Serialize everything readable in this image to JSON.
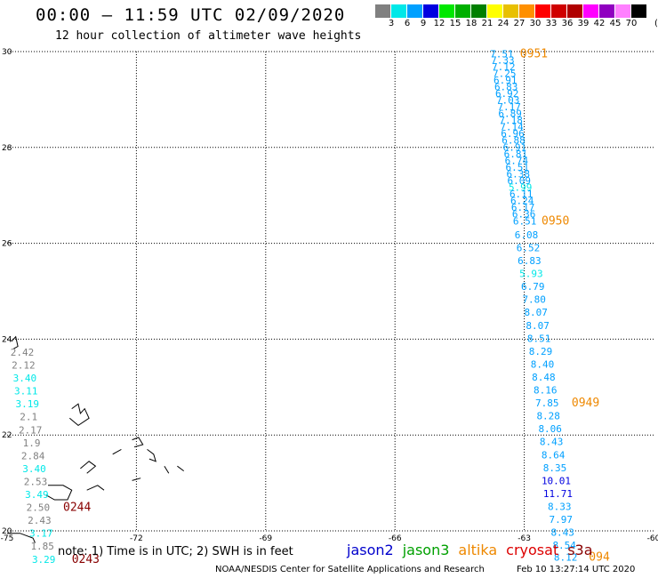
{
  "title": "00:00 – 11:59 UTC 02/09/2020",
  "subtitle": "12 hour collection of altimeter wave heights",
  "scale": {
    "unit": "(ft)",
    "colors": [
      "#808080",
      "#00e8e8",
      "#00a0ff",
      "#0000e0",
      "#00e800",
      "#00b000",
      "#008000",
      "#ffff00",
      "#e8c000",
      "#ff9000",
      "#ff0000",
      "#d00000",
      "#b00000",
      "#ff00ff",
      "#9000c0",
      "#ff80ff",
      "#000000"
    ],
    "ticks": [
      "3",
      "6",
      "9",
      "12",
      "15",
      "18",
      "21",
      "24",
      "27",
      "30",
      "33",
      "36",
      "39",
      "42",
      "45",
      "70"
    ]
  },
  "map": {
    "lon_ticks": [
      "-75",
      "-72",
      "-69",
      "-66",
      "-63",
      "-60"
    ],
    "lat_ticks": [
      "30",
      "28",
      "26",
      "24",
      "22",
      "20"
    ]
  },
  "tracks": [
    {
      "name": "track-east",
      "points": [
        {
          "lat": 29.95,
          "lon": -63.52,
          "v": "7.51"
        },
        {
          "lat": 29.82,
          "lon": -63.5,
          "v": "7.33"
        },
        {
          "lat": 29.68,
          "lon": -63.48,
          "v": "7.12"
        },
        {
          "lat": 29.55,
          "lon": -63.46,
          "v": "7.25"
        },
        {
          "lat": 29.41,
          "lon": -63.44,
          "v": "6.91"
        },
        {
          "lat": 29.27,
          "lon": -63.42,
          "v": "6.83"
        },
        {
          "lat": 29.13,
          "lon": -63.4,
          "v": "6.92"
        },
        {
          "lat": 28.99,
          "lon": -63.38,
          "v": "7.03"
        },
        {
          "lat": 28.85,
          "lon": -63.35,
          "v": "7.17"
        },
        {
          "lat": 28.71,
          "lon": -63.33,
          "v": "6.89"
        },
        {
          "lat": 28.57,
          "lon": -63.31,
          "v": "7.18"
        },
        {
          "lat": 28.43,
          "lon": -63.29,
          "v": "7.14"
        },
        {
          "lat": 28.29,
          "lon": -63.27,
          "v": "6.96"
        },
        {
          "lat": 28.15,
          "lon": -63.25,
          "v": "6.88"
        },
        {
          "lat": 28.01,
          "lon": -63.22,
          "v": "6.91"
        },
        {
          "lat": 27.87,
          "lon": -63.2,
          "v": "6.81"
        },
        {
          "lat": 27.73,
          "lon": -63.18,
          "v": "6.74"
        },
        {
          "lat": 27.59,
          "lon": -63.16,
          "v": "6.51"
        },
        {
          "lat": 27.45,
          "lon": -63.14,
          "v": "6.38"
        },
        {
          "lat": 27.31,
          "lon": -63.12,
          "v": "6.09"
        },
        {
          "lat": 27.17,
          "lon": -63.09,
          "v": "5.99"
        },
        {
          "lat": 27.03,
          "lon": -63.07,
          "v": "6.11"
        },
        {
          "lat": 26.89,
          "lon": -63.05,
          "v": "6.24"
        },
        {
          "lat": 26.75,
          "lon": -63.03,
          "v": "6.17"
        },
        {
          "lat": 26.61,
          "lon": -63.01,
          "v": "6.36"
        },
        {
          "lat": 26.47,
          "lon": -62.99,
          "v": "6.51"
        },
        {
          "lat": 26.18,
          "lon": -62.95,
          "v": "6.08"
        },
        {
          "lat": 25.91,
          "lon": -62.91,
          "v": "6.52"
        },
        {
          "lat": 25.64,
          "lon": -62.88,
          "v": "6.83"
        },
        {
          "lat": 25.37,
          "lon": -62.84,
          "v": "5.93"
        },
        {
          "lat": 25.1,
          "lon": -62.8,
          "v": "6.79"
        },
        {
          "lat": 24.83,
          "lon": -62.77,
          "v": "7.80"
        },
        {
          "lat": 24.56,
          "lon": -62.73,
          "v": "8.07"
        },
        {
          "lat": 24.29,
          "lon": -62.69,
          "v": "8.07"
        },
        {
          "lat": 24.02,
          "lon": -62.66,
          "v": "8.51"
        },
        {
          "lat": 23.75,
          "lon": -62.62,
          "v": "8.29"
        },
        {
          "lat": 23.48,
          "lon": -62.58,
          "v": "8.40"
        },
        {
          "lat": 23.21,
          "lon": -62.55,
          "v": "8.48"
        },
        {
          "lat": 22.94,
          "lon": -62.51,
          "v": "8.16"
        },
        {
          "lat": 22.67,
          "lon": -62.47,
          "v": "7.85"
        },
        {
          "lat": 22.4,
          "lon": -62.44,
          "v": "8.28"
        },
        {
          "lat": 22.13,
          "lon": -62.4,
          "v": "8.06"
        },
        {
          "lat": 21.86,
          "lon": -62.37,
          "v": "8.43"
        },
        {
          "lat": 21.59,
          "lon": -62.33,
          "v": "8.64"
        },
        {
          "lat": 21.32,
          "lon": -62.29,
          "v": "8.35"
        },
        {
          "lat": 21.05,
          "lon": -62.26,
          "v": "10.01"
        },
        {
          "lat": 20.78,
          "lon": -62.22,
          "v": "11.71"
        },
        {
          "lat": 20.51,
          "lon": -62.18,
          "v": "8.33"
        },
        {
          "lat": 20.24,
          "lon": -62.15,
          "v": "7.97"
        },
        {
          "lat": 19.97,
          "lon": -62.11,
          "v": "8.43"
        },
        {
          "lat": 19.7,
          "lon": -62.07,
          "v": "8.54"
        },
        {
          "lat": 19.45,
          "lon": -62.04,
          "v": "8.12"
        }
      ]
    },
    {
      "name": "track-west",
      "points": [
        {
          "lat": 23.73,
          "lon": -74.65,
          "v": "2.42"
        },
        {
          "lat": 23.46,
          "lon": -74.62,
          "v": "2.12"
        },
        {
          "lat": 23.19,
          "lon": -74.59,
          "v": "3.40"
        },
        {
          "lat": 22.92,
          "lon": -74.56,
          "v": "3.11"
        },
        {
          "lat": 22.65,
          "lon": -74.53,
          "v": "3.19"
        },
        {
          "lat": 22.38,
          "lon": -74.5,
          "v": "2.1"
        },
        {
          "lat": 22.11,
          "lon": -74.46,
          "v": "2.17"
        },
        {
          "lat": 21.84,
          "lon": -74.43,
          "v": "1.9"
        },
        {
          "lat": 21.57,
          "lon": -74.4,
          "v": "2.84"
        },
        {
          "lat": 21.3,
          "lon": -74.37,
          "v": "3.40"
        },
        {
          "lat": 21.03,
          "lon": -74.34,
          "v": "2.53"
        },
        {
          "lat": 20.76,
          "lon": -74.31,
          "v": "3.49"
        },
        {
          "lat": 20.49,
          "lon": -74.28,
          "v": "2.50"
        },
        {
          "lat": 20.22,
          "lon": -74.25,
          "v": "2.43"
        },
        {
          "lat": 19.95,
          "lon": -74.21,
          "v": "3.17"
        },
        {
          "lat": 19.68,
          "lon": -74.18,
          "v": "1.85"
        },
        {
          "lat": 19.41,
          "lon": -74.15,
          "v": "3.29"
        }
      ]
    }
  ],
  "time_labels": [
    {
      "text": "0951",
      "lat": 29.95,
      "lon": -63.1,
      "color": "#ee8800"
    },
    {
      "text": "0950",
      "lat": 26.47,
      "lon": -62.6,
      "color": "#ee8800"
    },
    {
      "text": "0949",
      "lat": 22.67,
      "lon": -61.9,
      "color": "#ee8800"
    },
    {
      "text": "094",
      "lat": 19.45,
      "lon": -61.5,
      "color": "#ee8800"
    },
    {
      "text": "0244",
      "lat": 20.49,
      "lon": -73.7,
      "color": "#880000"
    },
    {
      "text": "0243",
      "lat": 19.41,
      "lon": -73.5,
      "color": "#880000"
    }
  ],
  "note": "note: 1) Time is in UTC; 2) SWH is in feet",
  "satellites": [
    {
      "name": "jason2",
      "color": "#0000cc"
    },
    {
      "name": "jason3",
      "color": "#00a000"
    },
    {
      "name": "altika",
      "color": "#ee8800"
    },
    {
      "name": "cryosat",
      "color": "#dd0000"
    },
    {
      "name": "s3a",
      "color": "#880000"
    }
  ],
  "credit": "NOAA/NESDIS Center for Satellite Applications and Research",
  "timestamp": "Feb 10 13:27:14 UTC 2020"
}
